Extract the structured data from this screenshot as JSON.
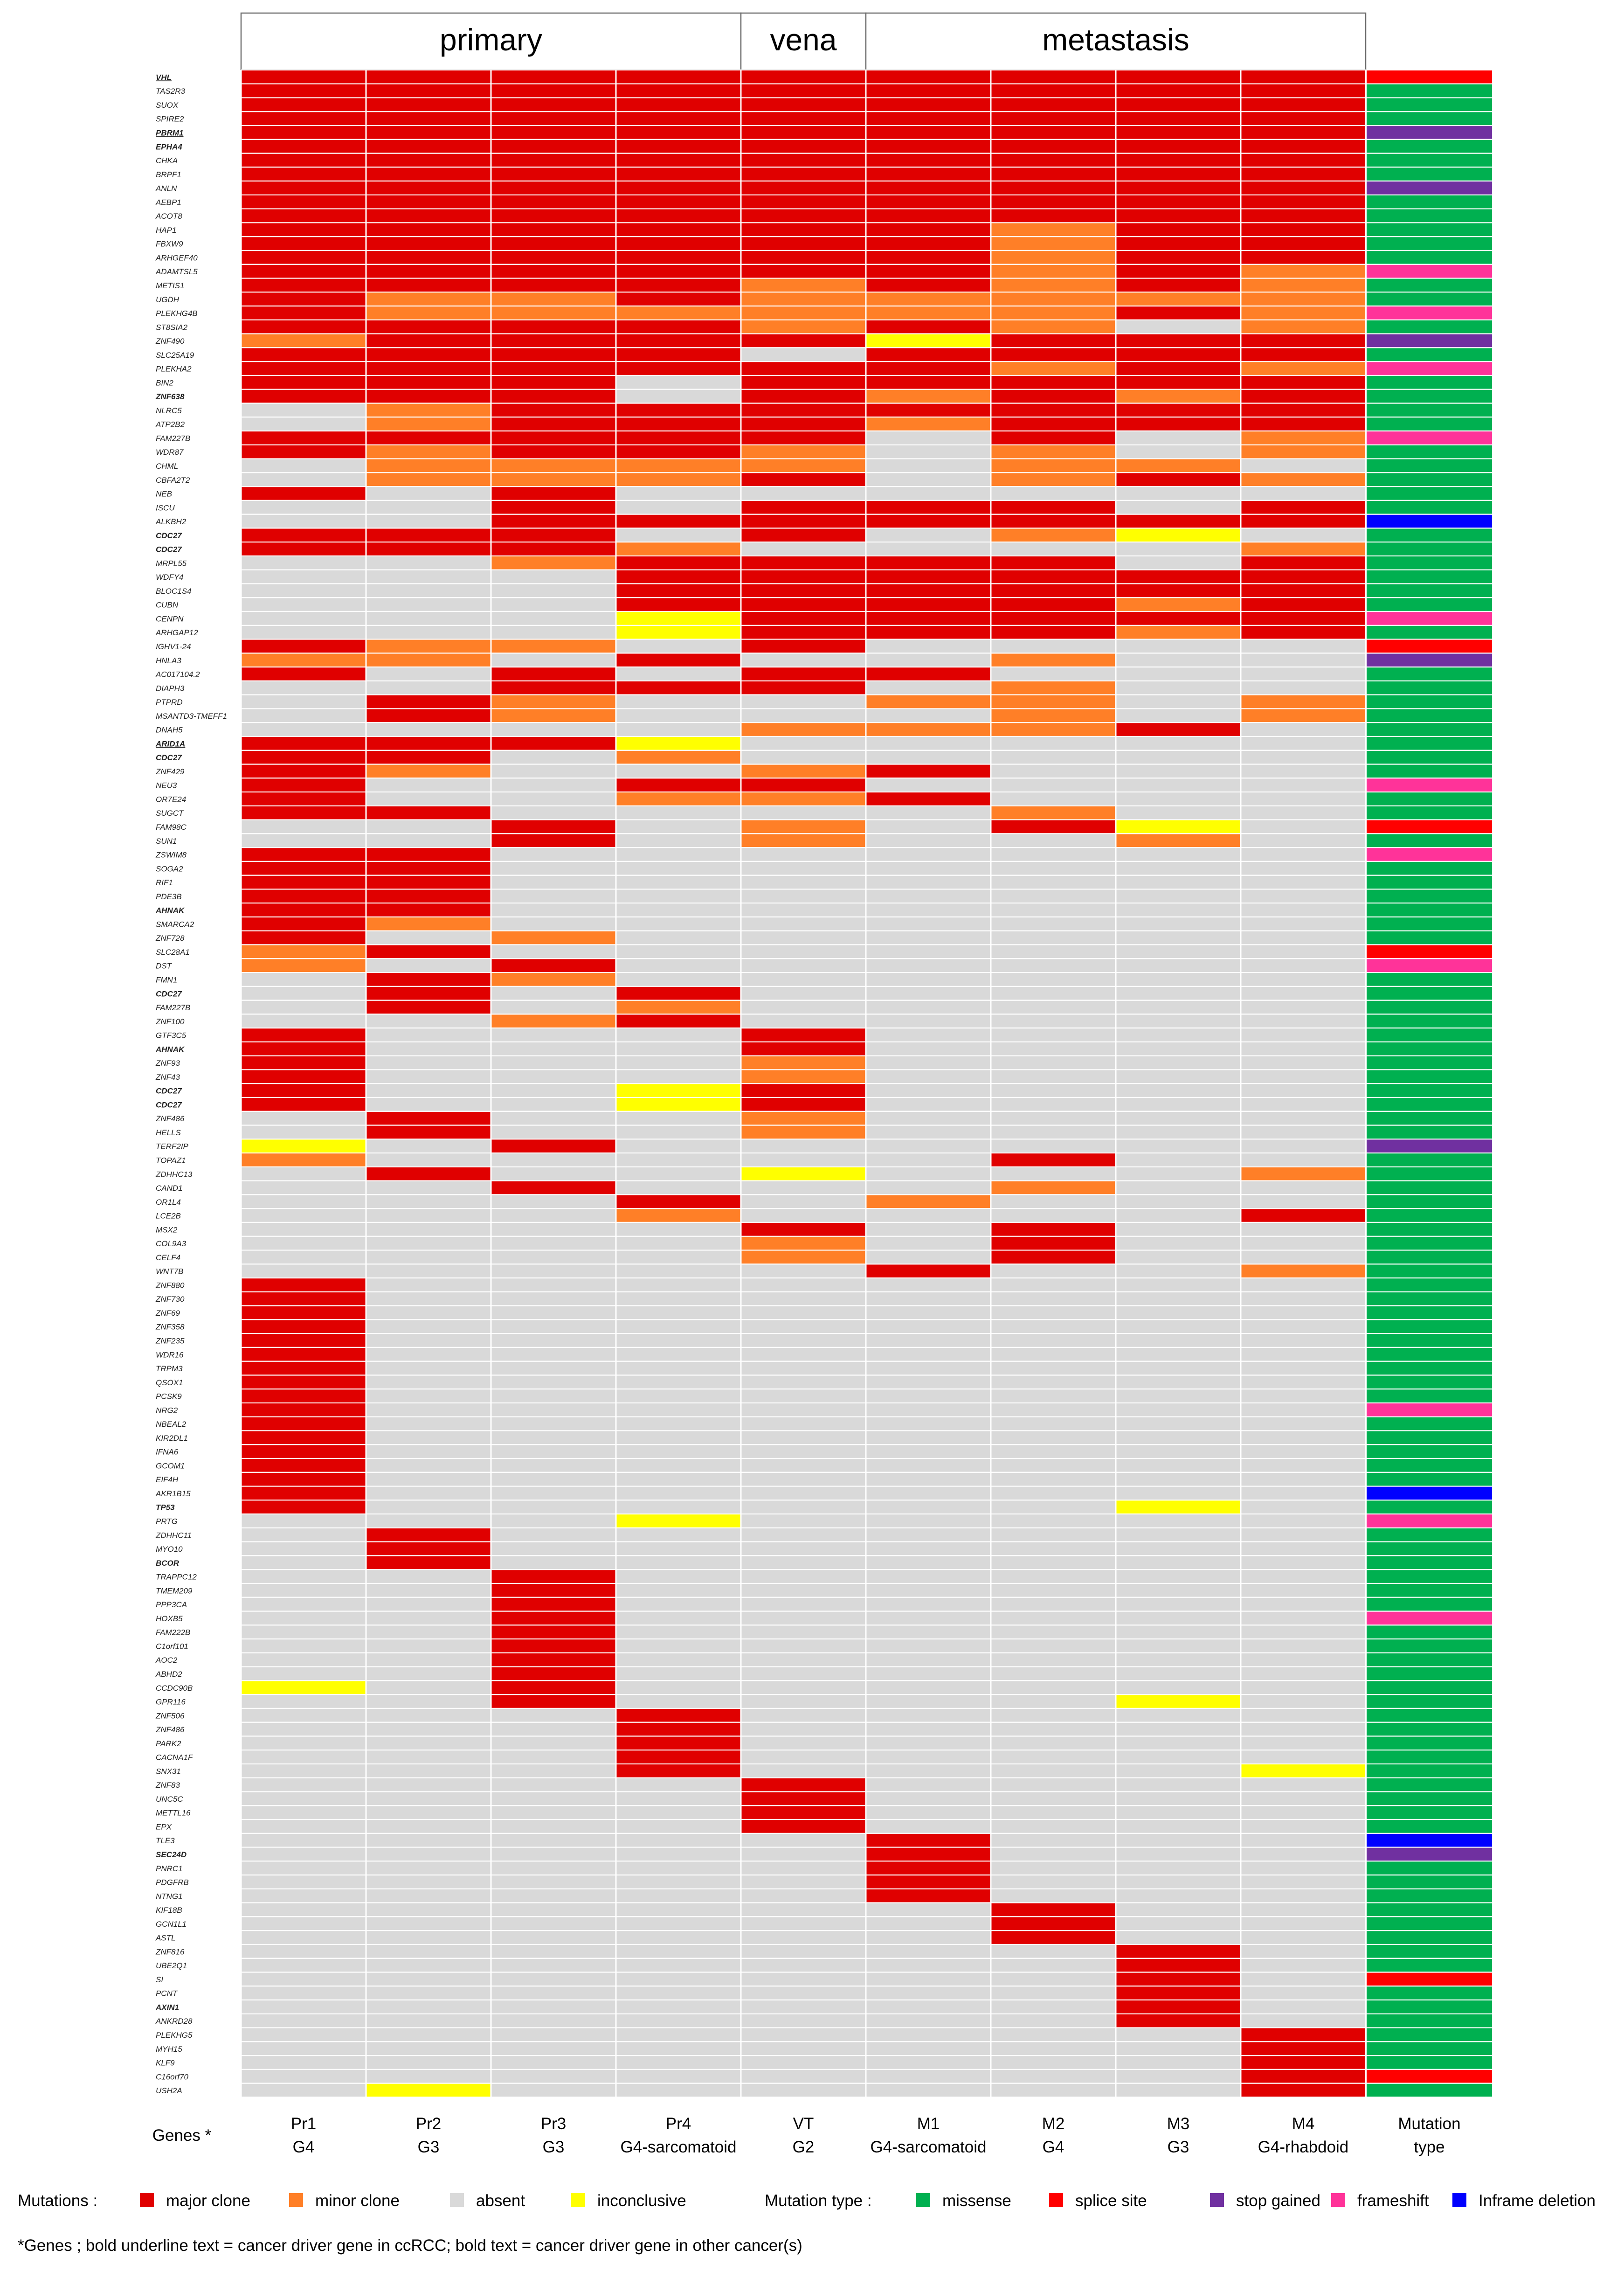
{
  "chart_data": {
    "type": "heatmap",
    "header_groups": [
      {
        "label": "primary",
        "from": 0,
        "to": 3
      },
      {
        "label": "vena",
        "from": 4,
        "to": 4
      },
      {
        "label": "metastasis",
        "from": 5,
        "to": 8
      }
    ],
    "samples": [
      {
        "name": "Pr1",
        "grade": "G4"
      },
      {
        "name": "Pr2",
        "grade": "G3"
      },
      {
        "name": "Pr3",
        "grade": "G3"
      },
      {
        "name": "Pr4",
        "grade": "G4-sarcomatoid"
      },
      {
        "name": "VT",
        "grade": "G2"
      },
      {
        "name": "M1",
        "grade": "G4-sarcomatoid"
      },
      {
        "name": "M2",
        "grade": "G4"
      },
      {
        "name": "M3",
        "grade": "G3"
      },
      {
        "name": "M4",
        "grade": "G4-rhabdoid"
      }
    ],
    "genes_axis_label": "Genes *",
    "mutation_type_column_label": [
      "Mutation",
      "type"
    ],
    "mutation_legend": {
      "title": "Mutations :",
      "entries": [
        {
          "code": "M",
          "label": "major clone",
          "color": "#e00000"
        },
        {
          "code": "m",
          "label": "minor clone",
          "color": "#ff7f27"
        },
        {
          "code": "a",
          "label": "absent",
          "color": "#d9d9d9"
        },
        {
          "code": "i",
          "label": "inconclusive",
          "color": "#ffff00"
        }
      ]
    },
    "type_legend": {
      "title": "Mutation type :",
      "entries": [
        {
          "code": "ms",
          "label": "missense",
          "color": "#00b050"
        },
        {
          "code": "ss",
          "label": "splice site",
          "color": "#ff0000"
        },
        {
          "code": "sg",
          "label": "stop gained",
          "color": "#7030a0"
        },
        {
          "code": "fs",
          "label": "frameshift",
          "color": "#ff3399"
        },
        {
          "code": "id",
          "label": "Inframe deletion",
          "color": "#0000ff"
        }
      ]
    },
    "footnote": "*Genes ; bold underline text = cancer driver gene in ccRCC; bold text = cancer driver gene in other cancer(s)",
    "style_codes": {
      "n": "normal",
      "b": "bold",
      "u": "bold underline"
    },
    "rows": [
      {
        "gene": "VHL",
        "s": "u",
        "c": "MMMMMMMMM",
        "t": "ss"
      },
      {
        "gene": "TAS2R3",
        "s": "n",
        "c": "MMMMMMMMM",
        "t": "ms"
      },
      {
        "gene": "SUOX",
        "s": "n",
        "c": "MMMMMMMMM",
        "t": "ms"
      },
      {
        "gene": "SPIRE2",
        "s": "n",
        "c": "MMMMMMMMM",
        "t": "ms"
      },
      {
        "gene": "PBRM1",
        "s": "u",
        "c": "MMMMMMMMM",
        "t": "sg"
      },
      {
        "gene": "EPHA4",
        "s": "b",
        "c": "MMMMMMMMM",
        "t": "ms"
      },
      {
        "gene": "CHKA",
        "s": "n",
        "c": "MMMMMMMMM",
        "t": "ms"
      },
      {
        "gene": "BRPF1",
        "s": "n",
        "c": "MMMMMMMMM",
        "t": "ms"
      },
      {
        "gene": "ANLN",
        "s": "n",
        "c": "MMMMMMMMM",
        "t": "sg"
      },
      {
        "gene": "AEBP1",
        "s": "n",
        "c": "MMMMMMMMM",
        "t": "ms"
      },
      {
        "gene": "ACOT8",
        "s": "n",
        "c": "MMMMMMMMM",
        "t": "ms"
      },
      {
        "gene": "HAP1",
        "s": "n",
        "c": "MMMMMMmMM",
        "t": "ms"
      },
      {
        "gene": "FBXW9",
        "s": "n",
        "c": "MMMMMMmMM",
        "t": "ms"
      },
      {
        "gene": "ARHGEF40",
        "s": "n",
        "c": "MMMMMMmMM",
        "t": "ms"
      },
      {
        "gene": "ADAMTSL5",
        "s": "n",
        "c": "MMMMMMmMm",
        "t": "fs"
      },
      {
        "gene": "METIS1",
        "s": "n",
        "c": "MMMMmMmMm",
        "t": "ms"
      },
      {
        "gene": "UGDH",
        "s": "n",
        "c": "MmmMmmmmm",
        "t": "ms"
      },
      {
        "gene": "PLEKHG4B",
        "s": "n",
        "c": "MmmmmmmMm",
        "t": "fs"
      },
      {
        "gene": "ST8SIA2",
        "s": "n",
        "c": "MMMMmMmam",
        "t": "ms"
      },
      {
        "gene": "ZNF490",
        "s": "n",
        "c": "mMMMMiMMM",
        "t": "sg"
      },
      {
        "gene": "SLC25A19",
        "s": "n",
        "c": "MMMMaMMMM",
        "t": "ms"
      },
      {
        "gene": "PLEKHA2",
        "s": "n",
        "c": "MMMMMMmMm",
        "t": "fs"
      },
      {
        "gene": "BIN2",
        "s": "n",
        "c": "MMMaMMMMM",
        "t": "ms"
      },
      {
        "gene": "ZNF638",
        "s": "b",
        "c": "MMMaMmMmM",
        "t": "ms"
      },
      {
        "gene": "NLRC5",
        "s": "n",
        "c": "amMMMMMMM",
        "t": "ms"
      },
      {
        "gene": "ATP2B2",
        "s": "n",
        "c": "amMMMmMMM",
        "t": "ms"
      },
      {
        "gene": "FAM227B",
        "s": "n",
        "c": "MMMMMaMam",
        "t": "fs"
      },
      {
        "gene": "WDR87",
        "s": "n",
        "c": "MmMMmamam",
        "t": "ms"
      },
      {
        "gene": "CHML",
        "s": "n",
        "c": "ammmmamma",
        "t": "ms"
      },
      {
        "gene": "CBFA2T2",
        "s": "n",
        "c": "ammmMamMm",
        "t": "ms"
      },
      {
        "gene": "NEB",
        "s": "n",
        "c": "MaMaaaaaa",
        "t": "ms"
      },
      {
        "gene": "ISCU",
        "s": "n",
        "c": "aaMaMMMaM",
        "t": "ms"
      },
      {
        "gene": "ALKBH2",
        "s": "n",
        "c": "aaMMMMMMM",
        "t": "id"
      },
      {
        "gene": "CDC27",
        "s": "b",
        "c": "MMMaMamia",
        "t": "ms"
      },
      {
        "gene": "CDC27",
        "s": "b",
        "c": "MMMmaaaam",
        "t": "ms"
      },
      {
        "gene": "MRPL55",
        "s": "n",
        "c": "aamMMMMaM",
        "t": "ms"
      },
      {
        "gene": "WDFY4",
        "s": "n",
        "c": "aaaMMMMMM",
        "t": "ms"
      },
      {
        "gene": "BLOC1S4",
        "s": "n",
        "c": "aaaMMMMMM",
        "t": "ms"
      },
      {
        "gene": "CUBN",
        "s": "n",
        "c": "aaaMMMMmM",
        "t": "ms"
      },
      {
        "gene": "CENPN",
        "s": "n",
        "c": "aaaiMMMMM",
        "t": "fs"
      },
      {
        "gene": "ARHGAP12",
        "s": "n",
        "c": "aaaiMMMmM",
        "t": "ms"
      },
      {
        "gene": "IGHV1-24",
        "s": "n",
        "c": "MmmaMaaaa",
        "t": "ss"
      },
      {
        "gene": "HNLA3",
        "s": "n",
        "c": "mmaMaamaa",
        "t": "sg"
      },
      {
        "gene": "AC017104.2",
        "s": "n",
        "c": "MaMaMMaaa",
        "t": "ms"
      },
      {
        "gene": "DIAPH3",
        "s": "n",
        "c": "aaMMMamaa",
        "t": "ms"
      },
      {
        "gene": "PTPRD",
        "s": "n",
        "c": "aMmaammam",
        "t": "ms"
      },
      {
        "gene": "MSANTD3-TMEFF1",
        "s": "n",
        "c": "aMmaaamam",
        "t": "ms"
      },
      {
        "gene": "DNAH5",
        "s": "n",
        "c": "aaaammmMa",
        "t": "ms"
      },
      {
        "gene": "ARID1A",
        "s": "u",
        "c": "MMMiaaaaa",
        "t": "ms"
      },
      {
        "gene": "CDC27",
        "s": "b",
        "c": "MMamaaaaa",
        "t": "ms"
      },
      {
        "gene": "ZNF429",
        "s": "n",
        "c": "MmaamMaaa",
        "t": "ms"
      },
      {
        "gene": "NEU3",
        "s": "n",
        "c": "MaaMMaaaa",
        "t": "fs"
      },
      {
        "gene": "OR7E24",
        "s": "n",
        "c": "MaammMaaa",
        "t": "ms"
      },
      {
        "gene": "SUGCT",
        "s": "n",
        "c": "MMaaaamaa",
        "t": "ms"
      },
      {
        "gene": "FAM98C",
        "s": "n",
        "c": "aaMamaMia",
        "t": "ss"
      },
      {
        "gene": "SUN1",
        "s": "n",
        "c": "aaMamaama",
        "t": "ms"
      },
      {
        "gene": "ZSWIM8",
        "s": "n",
        "c": "MMaaaaaaa",
        "t": "fs"
      },
      {
        "gene": "SOGA2",
        "s": "n",
        "c": "MMaaaaaaa",
        "t": "ms"
      },
      {
        "gene": "RIF1",
        "s": "n",
        "c": "MMaaaaaaa",
        "t": "ms"
      },
      {
        "gene": "PDE3B",
        "s": "n",
        "c": "MMaaaaaaa",
        "t": "ms"
      },
      {
        "gene": "AHNAK",
        "s": "b",
        "c": "MMaaaaaaa",
        "t": "ms"
      },
      {
        "gene": "SMARCA2",
        "s": "n",
        "c": "Mmaaaaaaa",
        "t": "ms"
      },
      {
        "gene": "ZNF728",
        "s": "n",
        "c": "Mamaaaaaa",
        "t": "ms"
      },
      {
        "gene": "SLC28A1",
        "s": "n",
        "c": "mMaaaaaaa",
        "t": "ss"
      },
      {
        "gene": "DST",
        "s": "n",
        "c": "maMaaaaaa",
        "t": "fs"
      },
      {
        "gene": "FMN1",
        "s": "n",
        "c": "aMmaaaaaa",
        "t": "ms"
      },
      {
        "gene": "CDC27",
        "s": "b",
        "c": "aMaMaaaaa",
        "t": "ms"
      },
      {
        "gene": "FAM227B",
        "s": "n",
        "c": "aMamaaaaa",
        "t": "ms"
      },
      {
        "gene": "ZNF100",
        "s": "n",
        "c": "aamMaaaaa",
        "t": "ms"
      },
      {
        "gene": "GTF3C5",
        "s": "n",
        "c": "MaaaMaaaa",
        "t": "ms"
      },
      {
        "gene": "AHNAK",
        "s": "b",
        "c": "MaaaMaaaa",
        "t": "ms"
      },
      {
        "gene": "ZNF93",
        "s": "n",
        "c": "Maaamaaaa",
        "t": "ms"
      },
      {
        "gene": "ZNF43",
        "s": "n",
        "c": "Maaamaaaa",
        "t": "ms"
      },
      {
        "gene": "CDC27",
        "s": "b",
        "c": "MaaiMaaaa",
        "t": "ms"
      },
      {
        "gene": "CDC27",
        "s": "b",
        "c": "MaaiMaaaa",
        "t": "ms"
      },
      {
        "gene": "ZNF486",
        "s": "n",
        "c": "aMaamaaaa",
        "t": "ms"
      },
      {
        "gene": "HELLS",
        "s": "n",
        "c": "aMaamaaaa",
        "t": "ms"
      },
      {
        "gene": "TERF2IP",
        "s": "n",
        "c": "iaMaaaaaa",
        "t": "sg"
      },
      {
        "gene": "TOPAZ1",
        "s": "n",
        "c": "maaaaaMaa",
        "t": "ms"
      },
      {
        "gene": "ZDHHC13",
        "s": "n",
        "c": "aMaaiaaam",
        "t": "ms"
      },
      {
        "gene": "CAND1",
        "s": "n",
        "c": "aaMaaamaa",
        "t": "ms"
      },
      {
        "gene": "OR1L4",
        "s": "n",
        "c": "aaaMamaaa",
        "t": "ms"
      },
      {
        "gene": "LCE2B",
        "s": "n",
        "c": "aaamaaaaM",
        "t": "ms"
      },
      {
        "gene": "MSX2",
        "s": "n",
        "c": "aaaaMaMaa",
        "t": "ms"
      },
      {
        "gene": "COL9A3",
        "s": "n",
        "c": "aaaamaMaa",
        "t": "ms"
      },
      {
        "gene": "CELF4",
        "s": "n",
        "c": "aaaamaMaa",
        "t": "ms"
      },
      {
        "gene": "WNT7B",
        "s": "n",
        "c": "aaaaaMaam",
        "t": "ms"
      },
      {
        "gene": "ZNF880",
        "s": "n",
        "c": "Maaaaaaaa",
        "t": "ms"
      },
      {
        "gene": "ZNF730",
        "s": "n",
        "c": "Maaaaaaaa",
        "t": "ms"
      },
      {
        "gene": "ZNF69",
        "s": "n",
        "c": "Maaaaaaaa",
        "t": "ms"
      },
      {
        "gene": "ZNF358",
        "s": "n",
        "c": "Maaaaaaaa",
        "t": "ms"
      },
      {
        "gene": "ZNF235",
        "s": "n",
        "c": "Maaaaaaaa",
        "t": "ms"
      },
      {
        "gene": "WDR16",
        "s": "n",
        "c": "Maaaaaaaa",
        "t": "ms"
      },
      {
        "gene": "TRPM3",
        "s": "n",
        "c": "Maaaaaaaa",
        "t": "ms"
      },
      {
        "gene": "QSOX1",
        "s": "n",
        "c": "Maaaaaaaa",
        "t": "ms"
      },
      {
        "gene": "PCSK9",
        "s": "n",
        "c": "Maaaaaaaa",
        "t": "ms"
      },
      {
        "gene": "NRG2",
        "s": "n",
        "c": "Maaaaaaaa",
        "t": "fs"
      },
      {
        "gene": "NBEAL2",
        "s": "n",
        "c": "Maaaaaaaa",
        "t": "ms"
      },
      {
        "gene": "KIR2DL1",
        "s": "n",
        "c": "Maaaaaaaa",
        "t": "ms"
      },
      {
        "gene": "IFNA6",
        "s": "n",
        "c": "Maaaaaaaa",
        "t": "ms"
      },
      {
        "gene": "GCOM1",
        "s": "n",
        "c": "Maaaaaaaa",
        "t": "ms"
      },
      {
        "gene": "EIF4H",
        "s": "n",
        "c": "Maaaaaaaa",
        "t": "ms"
      },
      {
        "gene": "AKR1B15",
        "s": "n",
        "c": "Maaaaaaaa",
        "t": "id"
      },
      {
        "gene": "TP53",
        "s": "b",
        "c": "Maaaaaaia",
        "t": "ms"
      },
      {
        "gene": "PRTG",
        "s": "n",
        "c": "aaaiaaaaa",
        "t": "fs"
      },
      {
        "gene": "ZDHHC11",
        "s": "n",
        "c": "aMaaaaaaa",
        "t": "ms"
      },
      {
        "gene": "MYO10",
        "s": "n",
        "c": "aMaaaaaaa",
        "t": "ms"
      },
      {
        "gene": "BCOR",
        "s": "b",
        "c": "aMaaaaaaa",
        "t": "ms"
      },
      {
        "gene": "TRAPPC12",
        "s": "n",
        "c": "aaMaaaaaa",
        "t": "ms"
      },
      {
        "gene": "TMEM209",
        "s": "n",
        "c": "aaMaaaaaa",
        "t": "ms"
      },
      {
        "gene": "PPP3CA",
        "s": "n",
        "c": "aaMaaaaaa",
        "t": "ms"
      },
      {
        "gene": "HOXB5",
        "s": "n",
        "c": "aaMaaaaaa",
        "t": "fs"
      },
      {
        "gene": "FAM222B",
        "s": "n",
        "c": "aaMaaaaaa",
        "t": "ms"
      },
      {
        "gene": "C1orf101",
        "s": "n",
        "c": "aaMaaaaaa",
        "t": "ms"
      },
      {
        "gene": "AOC2",
        "s": "n",
        "c": "aaMaaaaaa",
        "t": "ms"
      },
      {
        "gene": "ABHD2",
        "s": "n",
        "c": "aaMaaaaaa",
        "t": "ms"
      },
      {
        "gene": "CCDC90B",
        "s": "n",
        "c": "iaMaaaaaa",
        "t": "ms"
      },
      {
        "gene": "GPR116",
        "s": "n",
        "c": "aaMaaaaia",
        "t": "ms"
      },
      {
        "gene": "ZNF506",
        "s": "n",
        "c": "aaaMaaaaa",
        "t": "ms"
      },
      {
        "gene": "ZNF486",
        "s": "n",
        "c": "aaaMaaaaa",
        "t": "ms"
      },
      {
        "gene": "PARK2",
        "s": "n",
        "c": "aaaMaaaaa",
        "t": "ms"
      },
      {
        "gene": "CACNA1F",
        "s": "n",
        "c": "aaaMaaaaa",
        "t": "ms"
      },
      {
        "gene": "SNX31",
        "s": "n",
        "c": "aaaMaaaai",
        "t": "ms"
      },
      {
        "gene": "ZNF83",
        "s": "n",
        "c": "aaaaMaaaa",
        "t": "ms"
      },
      {
        "gene": "UNC5C",
        "s": "n",
        "c": "aaaaMaaaa",
        "t": "ms"
      },
      {
        "gene": "METTL16",
        "s": "n",
        "c": "aaaaMaaaa",
        "t": "ms"
      },
      {
        "gene": "EPX",
        "s": "n",
        "c": "aaaaMaaaa",
        "t": "ms"
      },
      {
        "gene": "TLE3",
        "s": "n",
        "c": "aaaaaMaaa",
        "t": "id"
      },
      {
        "gene": "SEC24D",
        "s": "b",
        "c": "aaaaaMaaa",
        "t": "sg"
      },
      {
        "gene": "PNRC1",
        "s": "n",
        "c": "aaaaaMaaa",
        "t": "ms"
      },
      {
        "gene": "PDGFRB",
        "s": "n",
        "c": "aaaaaMaaa",
        "t": "ms"
      },
      {
        "gene": "NTNG1",
        "s": "n",
        "c": "aaaaaMaaa",
        "t": "ms"
      },
      {
        "gene": "KIF18B",
        "s": "n",
        "c": "aaaaaaMaa",
        "t": "ms"
      },
      {
        "gene": "GCN1L1",
        "s": "n",
        "c": "aaaaaaMaa",
        "t": "ms"
      },
      {
        "gene": "ASTL",
        "s": "n",
        "c": "aaaaaaMaa",
        "t": "ms"
      },
      {
        "gene": "ZNF816",
        "s": "n",
        "c": "aaaaaaaMa",
        "t": "ms"
      },
      {
        "gene": "UBE2Q1",
        "s": "n",
        "c": "aaaaaaaMa",
        "t": "ms"
      },
      {
        "gene": "SI",
        "s": "n",
        "c": "aaaaaaaMa",
        "t": "ss"
      },
      {
        "gene": "PCNT",
        "s": "n",
        "c": "aaaaaaaMa",
        "t": "ms"
      },
      {
        "gene": "AXIN1",
        "s": "b",
        "c": "aaaaaaaMa",
        "t": "ms"
      },
      {
        "gene": "ANKRD28",
        "s": "n",
        "c": "aaaaaaaMa",
        "t": "ms"
      },
      {
        "gene": "PLEKHG5",
        "s": "n",
        "c": "aaaaaaaaM",
        "t": "ms"
      },
      {
        "gene": "MYH15",
        "s": "n",
        "c": "aaaaaaaaM",
        "t": "ms"
      },
      {
        "gene": "KLF9",
        "s": "n",
        "c": "aaaaaaaaM",
        "t": "ms"
      },
      {
        "gene": "C16orf70",
        "s": "n",
        "c": "aaaaaaaaM",
        "t": "ss"
      },
      {
        "gene": "USH2A",
        "s": "n",
        "c": "aiaaaaaaM",
        "t": "ms"
      }
    ]
  }
}
